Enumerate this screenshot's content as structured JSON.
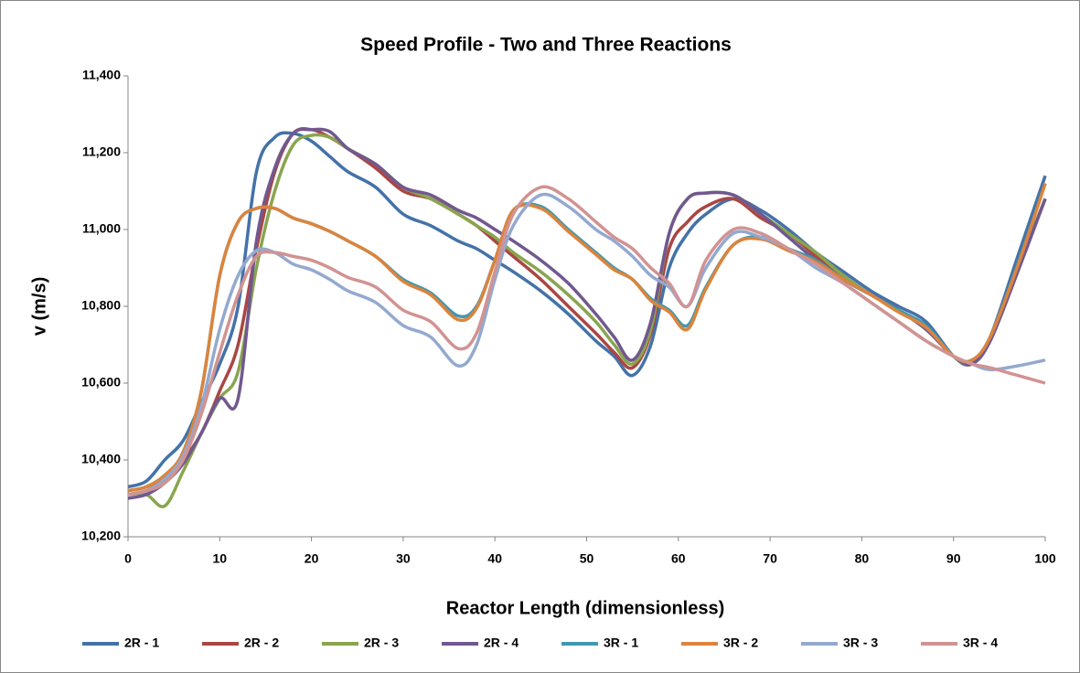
{
  "chart_data": {
    "type": "line",
    "title": "Speed Profile - Two and Three Reactions",
    "x_label": "Reactor Length (dimensionless)",
    "y_label": "v (m/s)",
    "x": [
      0,
      2,
      4,
      6,
      8,
      10,
      12,
      14,
      16,
      18,
      20,
      22,
      24,
      27,
      30,
      33,
      36,
      38,
      40,
      42,
      45,
      48,
      51,
      53,
      55,
      57,
      59,
      61,
      63,
      66,
      69,
      72,
      75,
      78,
      81,
      84,
      87,
      90,
      92,
      94,
      97,
      100
    ],
    "series": [
      {
        "name": "2R - 1",
        "color": "#4472a8",
        "values": [
          10330,
          10345,
          10400,
          10450,
          10550,
          10650,
          10800,
          11150,
          11240,
          11250,
          11230,
          11190,
          11150,
          11110,
          11040,
          11010,
          10970,
          10950,
          10920,
          10890,
          10840,
          10780,
          10710,
          10670,
          10620,
          10700,
          10900,
          10990,
          11040,
          11080,
          11050,
          11000,
          10940,
          10890,
          10840,
          10800,
          10760,
          10670,
          10650,
          10720,
          10930,
          11140
        ]
      },
      {
        "name": "2R - 2",
        "color": "#aa4643",
        "values": [
          10310,
          10320,
          10350,
          10400,
          10470,
          10580,
          10700,
          10950,
          11150,
          11250,
          11260,
          11240,
          11210,
          11160,
          11100,
          11080,
          11040,
          11010,
          10970,
          10930,
          10870,
          10800,
          10730,
          10680,
          10640,
          10730,
          10950,
          11020,
          11060,
          11080,
          11030,
          10990,
          10930,
          10870,
          10830,
          10790,
          10740,
          10670,
          10650,
          10720,
          10900,
          11080
        ]
      },
      {
        "name": "2R - 3",
        "color": "#89a54e",
        "values": [
          10310,
          10310,
          10280,
          10370,
          10470,
          10560,
          10630,
          10900,
          11100,
          11220,
          11245,
          11240,
          11210,
          11170,
          11110,
          11080,
          11040,
          11010,
          10980,
          10940,
          10890,
          10830,
          10760,
          10700,
          10650,
          10740,
          10990,
          11080,
          11095,
          11090,
          11040,
          10990,
          10940,
          10880,
          10830,
          10790,
          10740,
          10670,
          10650,
          10720,
          10900,
          11080
        ]
      },
      {
        "name": "2R - 4",
        "color": "#71588f",
        "values": [
          10300,
          10310,
          10340,
          10390,
          10470,
          10560,
          10560,
          10970,
          11160,
          11250,
          11260,
          11255,
          11210,
          11170,
          11110,
          11090,
          11050,
          11030,
          11000,
          10970,
          10920,
          10860,
          10780,
          10720,
          10660,
          10760,
          10990,
          11080,
          11095,
          11090,
          11040,
          10980,
          10920,
          10870,
          10830,
          10790,
          10740,
          10670,
          10650,
          10710,
          10890,
          11080
        ]
      },
      {
        "name": "3R - 1",
        "color": "#4198af",
        "values": [
          10320,
          10330,
          10360,
          10420,
          10580,
          10880,
          11020,
          11055,
          11055,
          11030,
          11015,
          10995,
          10970,
          10930,
          10870,
          10835,
          10775,
          10800,
          10920,
          11050,
          11060,
          11000,
          10940,
          10900,
          10870,
          10820,
          10790,
          10750,
          10850,
          10960,
          10980,
          10950,
          10920,
          10870,
          10830,
          10790,
          10750,
          10670,
          10660,
          10720,
          10910,
          11120
        ]
      },
      {
        "name": "3R - 2",
        "color": "#db843d",
        "values": [
          10320,
          10330,
          10360,
          10420,
          10580,
          10880,
          11020,
          11055,
          11055,
          11030,
          11015,
          10995,
          10970,
          10930,
          10865,
          10830,
          10765,
          10795,
          10920,
          11050,
          11055,
          10995,
          10935,
          10895,
          10870,
          10815,
          10785,
          10740,
          10845,
          10960,
          10975,
          10945,
          10915,
          10870,
          10830,
          10785,
          10745,
          10670,
          10660,
          10720,
          10905,
          11120
        ]
      },
      {
        "name": "3R - 3",
        "color": "#93a9cf",
        "values": [
          10310,
          10320,
          10350,
          10410,
          10540,
          10740,
          10880,
          10945,
          10940,
          10910,
          10895,
          10870,
          10840,
          10810,
          10750,
          10720,
          10645,
          10700,
          10870,
          11010,
          11090,
          11060,
          11000,
          10970,
          10930,
          10880,
          10850,
          10800,
          10900,
          10990,
          10980,
          10950,
          10900,
          10860,
          10810,
          10760,
          10710,
          10670,
          10650,
          10635,
          10645,
          10660
        ]
      },
      {
        "name": "3R - 4",
        "color": "#d19392",
        "values": [
          10310,
          10320,
          10340,
          10400,
          10520,
          10680,
          10830,
          10930,
          10940,
          10930,
          10920,
          10900,
          10875,
          10850,
          10790,
          10760,
          10690,
          10730,
          10890,
          11040,
          11110,
          11080,
          11020,
          10980,
          10950,
          10900,
          10860,
          10800,
          10920,
          11000,
          10990,
          10950,
          10910,
          10860,
          10810,
          10760,
          10710,
          10670,
          10650,
          10640,
          10620,
          10600
        ]
      }
    ],
    "xlim": [
      0,
      100
    ],
    "xticks": [
      0,
      10,
      20,
      30,
      40,
      50,
      60,
      70,
      80,
      90,
      100
    ],
    "ylim": [
      10200,
      11400
    ],
    "yticks": [
      {
        "value": 10200,
        "label": "10,200"
      },
      {
        "value": 10400,
        "label": "10,400"
      },
      {
        "value": 10600,
        "label": "10,600"
      },
      {
        "value": 10800,
        "label": "10,800"
      },
      {
        "value": 11000,
        "label": "11,000"
      },
      {
        "value": 11200,
        "label": "11,200"
      },
      {
        "value": 11400,
        "label": "11,400"
      }
    ],
    "grid": false,
    "legend": "bottom"
  }
}
